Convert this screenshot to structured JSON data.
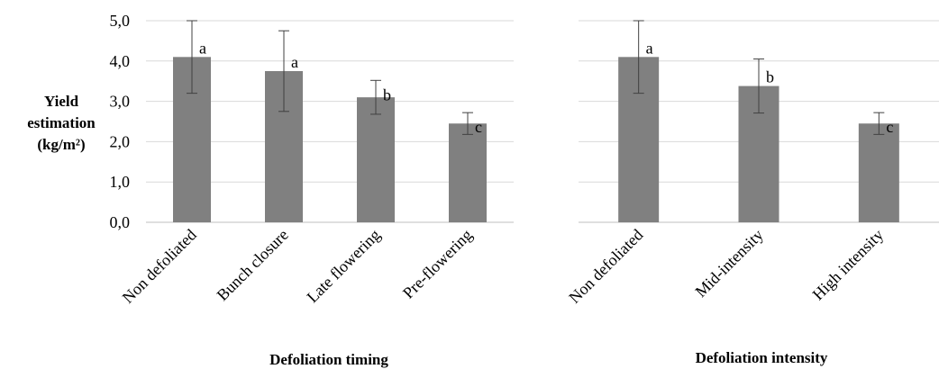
{
  "chart_data": {
    "type": "bar",
    "ylabel_lines": [
      "Yield",
      "estimation",
      "(kg/m²)"
    ],
    "yticks": [
      "0,0",
      "1,0",
      "2,0",
      "3,0",
      "4,0",
      "5,0"
    ],
    "ylim": [
      0,
      5
    ],
    "grid": true,
    "bar_color": "#808080",
    "panels": [
      {
        "xlabel": "Defoliation timing",
        "categories": [
          "Non defoliated",
          "Bunch closure",
          "Late flowering",
          "Pre-flowering"
        ],
        "values": [
          4.1,
          3.75,
          3.1,
          2.45
        ],
        "error": [
          0.9,
          1.0,
          0.42,
          0.27
        ],
        "letters": [
          "a",
          "a",
          "b",
          "c"
        ]
      },
      {
        "xlabel": "Defoliation intensity",
        "categories": [
          "Non defoliated",
          "Mid-intensity",
          "High intensity"
        ],
        "values": [
          4.1,
          3.38,
          2.45
        ],
        "error": [
          0.9,
          0.67,
          0.27
        ],
        "letters": [
          "a",
          "b",
          "c"
        ]
      }
    ]
  }
}
